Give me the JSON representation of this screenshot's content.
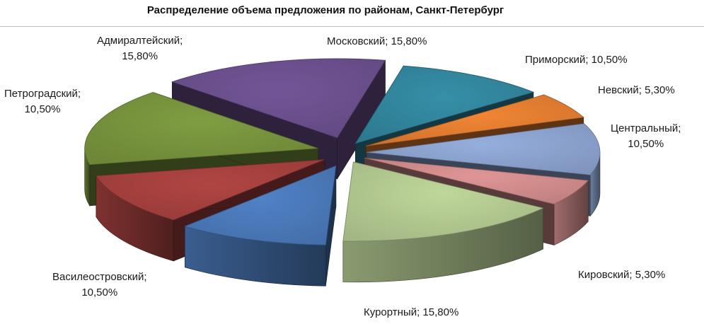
{
  "chart_data": {
    "type": "pie",
    "title": "Распределение объема предложения по районам, Санкт-Петербург",
    "slices": [
      {
        "name": "Московский",
        "value": 15.8,
        "label": "Московский; 15,80%",
        "color": "#6a4f8c"
      },
      {
        "name": "Приморский",
        "value": 10.5,
        "label": "Приморский; 10,50%",
        "color": "#31849b"
      },
      {
        "name": "Невский",
        "value": 5.3,
        "label": "Невский; 5,30%",
        "color": "#e07c30"
      },
      {
        "name": "Центральный",
        "value": 10.5,
        "label": "Центральный; 10,50%",
        "color": "#8aa1cc"
      },
      {
        "name": "Кировский",
        "value": 5.3,
        "label": "Кировский; 5,30%",
        "color": "#cf8a8a"
      },
      {
        "name": "Курортный",
        "value": 15.8,
        "label": "Курортный; 15,80%",
        "color": "#b1c78f"
      },
      {
        "name": "Василеостровский",
        "value": 10.5,
        "label": "Василеостровский; 10,50%",
        "color": "#4a78b8"
      },
      {
        "name": "Петроградский",
        "value": 10.5,
        "label": "Петроградский; 10,50%",
        "color": "#a3403e"
      },
      {
        "name": "Адмиралтейский",
        "value": 15.8,
        "label": "Адмиралтейский; 15,80%",
        "color": "#76923c"
      }
    ],
    "style": "3d-exploded"
  }
}
